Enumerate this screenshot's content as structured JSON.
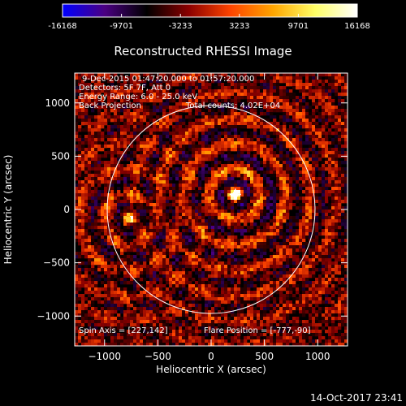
{
  "colorbar": {
    "ticks": [
      "-16168",
      "-9701",
      "-3233",
      "3233",
      "9701",
      "16168"
    ],
    "colors": [
      "#0000ff",
      "#4b0082",
      "#000000",
      "#8b0000",
      "#ff4500",
      "#ffa500",
      "#ffff66",
      "#ffffff"
    ]
  },
  "chart_data": {
    "type": "heatmap",
    "title": "Reconstructed RHESSI Image",
    "xlabel": "Heliocentric X (arcsec)",
    "ylabel": "Heliocentric Y (arcsec)",
    "xlim": [
      -1280,
      1280
    ],
    "ylim": [
      -1280,
      1280
    ],
    "xticks": [
      -1000,
      -500,
      0,
      500,
      1000
    ],
    "xtick_labels": [
      "−1000",
      "−500",
      "0",
      "500",
      "1000"
    ],
    "yticks": [
      -1000,
      -500,
      0,
      500,
      1000
    ],
    "ytick_labels": [
      "−1000",
      "−500",
      "0",
      "500",
      "1000"
    ],
    "value_range": [
      -16168,
      16168
    ],
    "solar_limb": {
      "center": [
        0,
        0
      ],
      "radius": 975
    },
    "sources": [
      {
        "x": 227,
        "y": 142,
        "intensity": 16168
      },
      {
        "x": -777,
        "y": -90,
        "intensity": 9701
      }
    ],
    "marker": {
      "type": "cross",
      "x": 227,
      "y": 142
    },
    "grid": false
  },
  "annotations": {
    "time": "9-Dec-2015 01:47:20.000 to 01:57:20.000",
    "detectors": "Detectors: 5F 7F, Att 0",
    "energy": "Energy Range: 6.0 - 25.0 keV",
    "method": "Back Projection",
    "counts": "Total counts: 4.02E+04",
    "spin_axis": "Spin Axis = [227,142]",
    "flare_position": "Flare Position = [-777,-90]"
  },
  "footer": {
    "timestamp": "14-Oct-2017 23:41"
  }
}
